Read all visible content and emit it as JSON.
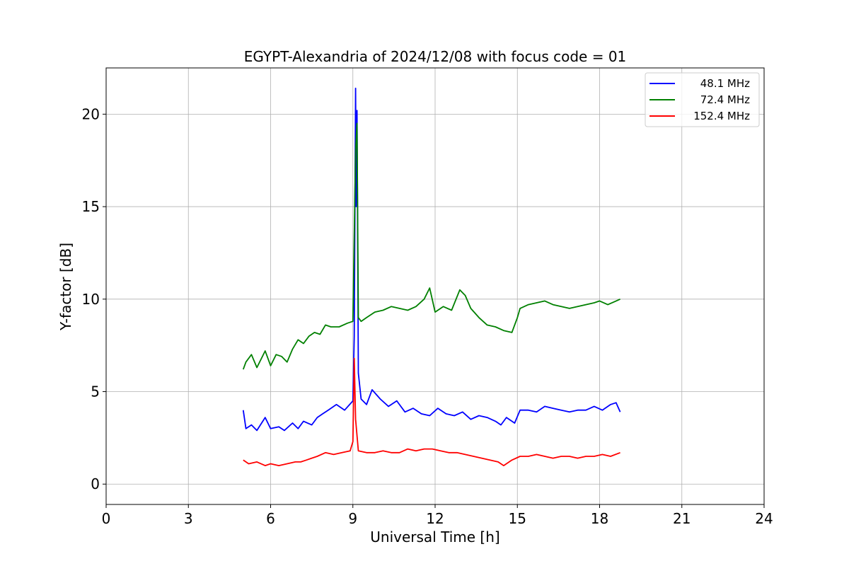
{
  "chart_data": {
    "type": "line",
    "title": "EGYPT-Alexandria of 2024/12/08 with focus code = 01",
    "xlabel": "Universal Time [h]",
    "ylabel": "Y-factor [dB]",
    "xlim": [
      0,
      24
    ],
    "ylim": [
      -1.1,
      22.5
    ],
    "xticks": [
      0,
      3,
      6,
      9,
      12,
      15,
      18,
      21,
      24
    ],
    "xtick_labels": [
      "0",
      "3",
      "6",
      "9",
      "12",
      "15",
      "18",
      "21",
      "24"
    ],
    "yticks": [
      0,
      5,
      10,
      15,
      20
    ],
    "ytick_labels": [
      "0",
      "5",
      "10",
      "15",
      "20"
    ],
    "grid": true,
    "legend_position": "top-right",
    "series": [
      {
        "name": "48.1 MHz",
        "color": "#0000ff",
        "x": [
          5.0,
          5.1,
          5.3,
          5.5,
          5.8,
          6.0,
          6.3,
          6.5,
          6.8,
          7.0,
          7.2,
          7.5,
          7.7,
          7.9,
          8.1,
          8.4,
          8.7,
          9.0,
          9.05,
          9.1,
          9.12,
          9.15,
          9.2,
          9.3,
          9.5,
          9.7,
          10.0,
          10.3,
          10.6,
          10.9,
          11.2,
          11.5,
          11.8,
          12.1,
          12.4,
          12.7,
          13.0,
          13.3,
          13.6,
          13.9,
          14.2,
          14.4,
          14.6,
          14.9,
          15.1,
          15.4,
          15.7,
          16.0,
          16.3,
          16.6,
          16.9,
          17.2,
          17.5,
          17.8,
          18.1,
          18.4,
          18.6,
          18.75
        ],
        "y": [
          4.0,
          3.0,
          3.2,
          2.9,
          3.6,
          3.0,
          3.1,
          2.9,
          3.3,
          3.0,
          3.4,
          3.2,
          3.6,
          3.8,
          4.0,
          4.3,
          4.0,
          4.5,
          8.0,
          21.4,
          15.0,
          20.2,
          6.0,
          4.6,
          4.3,
          5.1,
          4.6,
          4.2,
          4.5,
          3.9,
          4.1,
          3.8,
          3.7,
          4.1,
          3.8,
          3.7,
          3.9,
          3.5,
          3.7,
          3.6,
          3.4,
          3.2,
          3.6,
          3.3,
          4.0,
          4.0,
          3.9,
          4.2,
          4.1,
          4.0,
          3.9,
          4.0,
          4.0,
          4.2,
          4.0,
          4.3,
          4.4,
          3.9
        ]
      },
      {
        "name": "72.4 MHz",
        "color": "#008000",
        "x": [
          5.0,
          5.1,
          5.3,
          5.5,
          5.8,
          6.0,
          6.2,
          6.4,
          6.6,
          6.8,
          7.0,
          7.2,
          7.4,
          7.6,
          7.8,
          8.0,
          8.2,
          8.5,
          8.8,
          9.0,
          9.1,
          9.15,
          9.2,
          9.3,
          9.5,
          9.8,
          10.1,
          10.4,
          10.7,
          11.0,
          11.3,
          11.6,
          11.8,
          12.0,
          12.3,
          12.6,
          12.9,
          13.1,
          13.3,
          13.6,
          13.9,
          14.2,
          14.5,
          14.8,
          15.0,
          15.1,
          15.4,
          15.7,
          16.0,
          16.3,
          16.6,
          16.9,
          17.2,
          17.5,
          17.8,
          18.0,
          18.3,
          18.6,
          18.75
        ],
        "y": [
          6.2,
          6.6,
          7.0,
          6.3,
          7.2,
          6.4,
          7.0,
          6.9,
          6.6,
          7.3,
          7.8,
          7.6,
          8.0,
          8.2,
          8.1,
          8.6,
          8.5,
          8.5,
          8.7,
          8.8,
          18.0,
          19.5,
          9.0,
          8.8,
          9.0,
          9.3,
          9.4,
          9.6,
          9.5,
          9.4,
          9.6,
          10.0,
          10.6,
          9.3,
          9.6,
          9.4,
          10.5,
          10.2,
          9.5,
          9.0,
          8.6,
          8.5,
          8.3,
          8.2,
          9.0,
          9.5,
          9.7,
          9.8,
          9.9,
          9.7,
          9.6,
          9.5,
          9.6,
          9.7,
          9.8,
          9.9,
          9.7,
          9.9,
          10.0
        ]
      },
      {
        "name": "152.4 MHz",
        "color": "#ff0000",
        "x": [
          5.0,
          5.2,
          5.5,
          5.8,
          6.0,
          6.3,
          6.6,
          6.9,
          7.1,
          7.3,
          7.5,
          7.7,
          8.0,
          8.3,
          8.6,
          8.9,
          9.0,
          9.05,
          9.1,
          9.2,
          9.5,
          9.8,
          10.1,
          10.4,
          10.7,
          11.0,
          11.3,
          11.6,
          11.9,
          12.2,
          12.5,
          12.8,
          13.1,
          13.4,
          13.7,
          14.0,
          14.3,
          14.5,
          14.8,
          15.1,
          15.4,
          15.7,
          16.0,
          16.3,
          16.6,
          16.9,
          17.2,
          17.5,
          17.8,
          18.1,
          18.4,
          18.75
        ],
        "y": [
          1.3,
          1.1,
          1.2,
          1.0,
          1.1,
          1.0,
          1.1,
          1.2,
          1.2,
          1.3,
          1.4,
          1.5,
          1.7,
          1.6,
          1.7,
          1.8,
          2.3,
          6.8,
          3.5,
          1.8,
          1.7,
          1.7,
          1.8,
          1.7,
          1.7,
          1.9,
          1.8,
          1.9,
          1.9,
          1.8,
          1.7,
          1.7,
          1.6,
          1.5,
          1.4,
          1.3,
          1.2,
          1.0,
          1.3,
          1.5,
          1.5,
          1.6,
          1.5,
          1.4,
          1.5,
          1.5,
          1.4,
          1.5,
          1.5,
          1.6,
          1.5,
          1.7
        ]
      }
    ]
  }
}
